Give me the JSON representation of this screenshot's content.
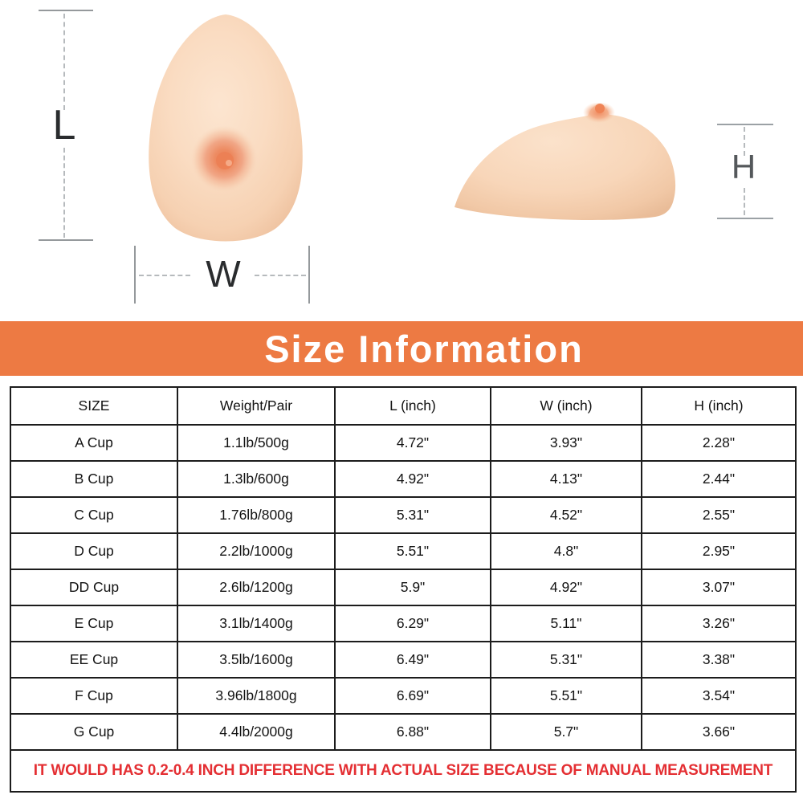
{
  "diagram": {
    "length_label": "L",
    "width_label": "W",
    "height_label": "H",
    "front_view_icon": "breast-form-front-view",
    "side_view_icon": "breast-form-side-view"
  },
  "banner": {
    "title": "Size Information",
    "background_color": "#ED7A43",
    "text_color": "#FFFFFF"
  },
  "table": {
    "columns": [
      "SIZE",
      "Weight/Pair",
      "L (inch)",
      "W (inch)",
      "H (inch)"
    ],
    "rows": [
      [
        "A Cup",
        "1.1lb/500g",
        "4.72\"",
        "3.93\"",
        "2.28\""
      ],
      [
        "B Cup",
        "1.3lb/600g",
        "4.92\"",
        "4.13\"",
        "2.44\""
      ],
      [
        "C Cup",
        "1.76lb/800g",
        "5.31\"",
        "4.52\"",
        "2.55\""
      ],
      [
        "D Cup",
        "2.2lb/1000g",
        "5.51\"",
        "4.8\"",
        "2.95\""
      ],
      [
        "DD Cup",
        "2.6lb/1200g",
        "5.9\"",
        "4.92\"",
        "3.07\""
      ],
      [
        "E Cup",
        "3.1lb/1400g",
        "6.29\"",
        "5.11\"",
        "3.26\""
      ],
      [
        "EE Cup",
        "3.5lb/1600g",
        "6.49\"",
        "5.31\"",
        "3.38\""
      ],
      [
        "F Cup",
        "3.96lb/1800g",
        "6.69\"",
        "5.51\"",
        "3.54\""
      ],
      [
        "G Cup",
        "4.4lb/2000g",
        "6.88\"",
        "5.7\"",
        "3.66\""
      ]
    ],
    "note": "IT WOULD HAS 0.2-0.4 INCH DIFFERENCE WITH ACTUAL SIZE BECAUSE OF MANUAL MEASUREMENT",
    "note_color": "#E42F33",
    "border_color": "#1C1C1C"
  },
  "colors": {
    "skin_light": "#FBE0C8",
    "skin_mid": "#F7D2B4",
    "skin_shadow": "#EEC09D",
    "areola": "#EE8A63",
    "nipple": "#EC7F52",
    "dimension_caps": "#95999C",
    "dimension_dashes": "#B6BABD"
  }
}
